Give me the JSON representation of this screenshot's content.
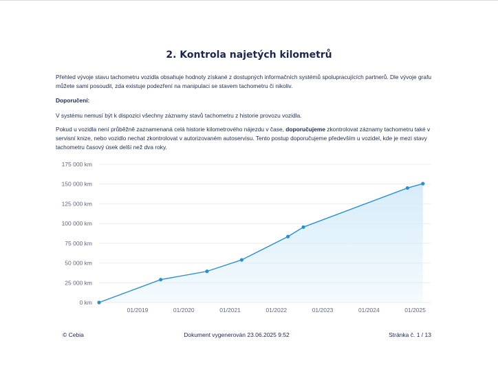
{
  "document": {
    "title": "2. Kontrola najetých kilometrů",
    "paragraph1": "Přehled vývoje stavu tachometru vozidla obsahuje hodnoty získané z dostupných informačních systémů spolupracujících partnerů. Dle vývoje grafu můžete sami posoudit, zda existuje podezření na manipulaci se stavem tachometru či nikoliv.",
    "recommendation_heading": "Doporučení:",
    "paragraph2": "V systému nemusí být k dispozici všechny záznamy stavů tachometru z historie provozu vozidla.",
    "paragraph3_part1": "Pokud u vozidla není průběžně zaznamenaná celá historie kilometrového nájezdu v čase, ",
    "paragraph3_bold": "doporučujeme",
    "paragraph3_part2": " zkontrolovat záznamy tachometru také v servisní knize, nebo vozidlo nechat zkontrolovat v autorizovaném autoservisu. Tento postup doporučujeme především u vozidel, kde je mezi stavy tachometru časový úsek delší než dva roky."
  },
  "chart_data": {
    "type": "area",
    "title": "",
    "xlabel": "",
    "ylabel": "",
    "x": [
      "2018-03",
      "2019-07",
      "2020-07",
      "2021-04",
      "2022-04",
      "2022-08",
      "2024-11",
      "2025-03"
    ],
    "values": [
      0,
      29000,
      39500,
      54000,
      83500,
      95500,
      145000,
      150500
    ],
    "ylim": [
      0,
      175000
    ],
    "xlim": [
      "2018-03",
      "2025-05"
    ],
    "y_ticks": [
      0,
      25000,
      50000,
      75000,
      100000,
      125000,
      150000,
      175000
    ],
    "y_tick_labels": [
      "0 km",
      "25 000 km",
      "50 000 km",
      "75 000 km",
      "100 000 km",
      "125 000 km",
      "150 000 km",
      "175 000 km"
    ],
    "x_ticks": [
      "2019-01",
      "2020-01",
      "2021-01",
      "2022-01",
      "2023-01",
      "2024-01",
      "2025-01"
    ],
    "x_tick_labels": [
      "01/2019",
      "01/2020",
      "01/2021",
      "01/2022",
      "01/2023",
      "01/2024",
      "01/2025"
    ],
    "grid": true,
    "line_color": "#2a8fd0",
    "fill_color": "#d6ecf9"
  },
  "footer": {
    "copyright": "© Cebia",
    "generated": "Dokument vygenerován 23.06.2025 9:52",
    "page": "Stránka č. 1 / 13"
  }
}
